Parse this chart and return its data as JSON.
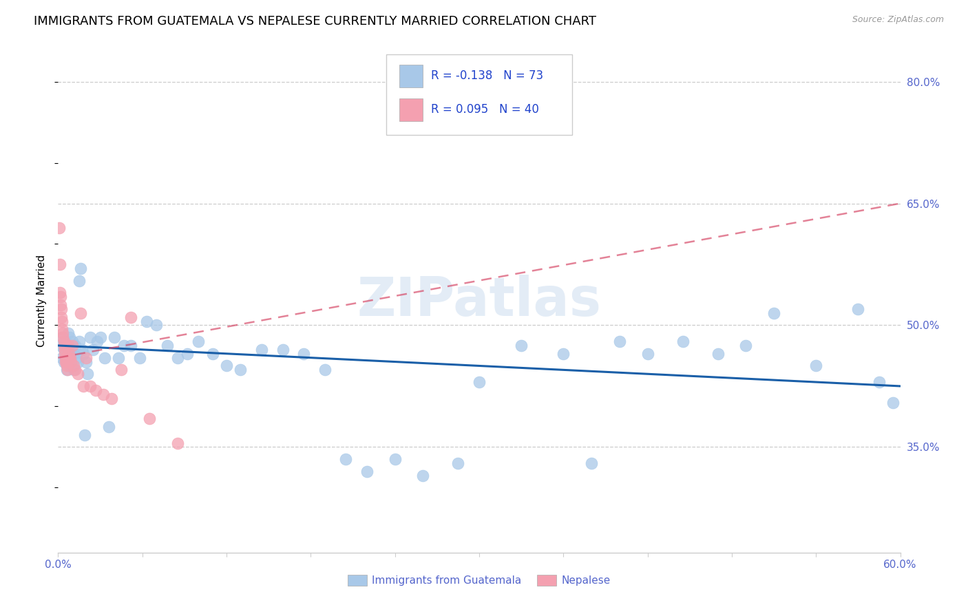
{
  "title": "IMMIGRANTS FROM GUATEMALA VS NEPALESE CURRENTLY MARRIED CORRELATION CHART",
  "source": "Source: ZipAtlas.com",
  "ylabel": "Currently Married",
  "right_yticks": [
    35.0,
    50.0,
    65.0,
    80.0
  ],
  "xlim_pct": [
    0.0,
    60.0
  ],
  "ylim_pct": [
    22.0,
    84.0
  ],
  "legend_r1": "-0.138",
  "legend_n1": "73",
  "legend_r2": "0.095",
  "legend_n2": "40",
  "legend_label1": "Immigrants from Guatemala",
  "legend_label2": "Nepalese",
  "blue_color": "#a8c8e8",
  "pink_color": "#f4a0b0",
  "blue_line_color": "#1a5fa8",
  "pink_line_color": "#d44060",
  "title_fontsize": 13,
  "tick_fontsize": 11,
  "tick_color": "#5566cc",
  "blue_trend_x0": 0.0,
  "blue_trend_y0": 47.5,
  "blue_trend_x1": 60.0,
  "blue_trend_y1": 42.5,
  "pink_trend_x0": 0.0,
  "pink_trend_y0": 46.0,
  "pink_trend_x1": 60.0,
  "pink_trend_y1": 65.0,
  "blue_x": [
    0.2,
    0.3,
    0.3,
    0.4,
    0.4,
    0.5,
    0.5,
    0.6,
    0.6,
    0.7,
    0.7,
    0.8,
    0.8,
    0.9,
    0.9,
    1.0,
    1.0,
    1.1,
    1.1,
    1.2,
    1.3,
    1.4,
    1.5,
    1.5,
    1.6,
    1.7,
    1.8,
    1.9,
    2.0,
    2.1,
    2.3,
    2.5,
    2.8,
    3.0,
    3.3,
    3.6,
    4.0,
    4.3,
    4.7,
    5.2,
    5.8,
    6.3,
    7.0,
    7.8,
    8.5,
    9.2,
    10.0,
    11.0,
    12.0,
    13.0,
    14.5,
    16.0,
    17.5,
    19.0,
    20.5,
    22.0,
    24.0,
    26.0,
    28.5,
    30.0,
    33.0,
    36.0,
    38.0,
    40.0,
    42.0,
    44.5,
    47.0,
    49.0,
    51.0,
    54.0,
    57.0,
    58.5,
    59.5
  ],
  "blue_y": [
    47.5,
    48.5,
    46.0,
    47.0,
    45.5,
    48.0,
    46.5,
    47.5,
    44.5,
    49.0,
    46.0,
    48.5,
    45.0,
    47.0,
    46.5,
    48.0,
    47.0,
    46.5,
    44.5,
    47.5,
    46.0,
    45.5,
    55.5,
    48.0,
    57.0,
    47.0,
    46.5,
    36.5,
    45.5,
    44.0,
    48.5,
    47.0,
    48.0,
    48.5,
    46.0,
    37.5,
    48.5,
    46.0,
    47.5,
    47.5,
    46.0,
    50.5,
    50.0,
    47.5,
    46.0,
    46.5,
    48.0,
    46.5,
    45.0,
    44.5,
    47.0,
    47.0,
    46.5,
    44.5,
    33.5,
    32.0,
    33.5,
    31.5,
    33.0,
    43.0,
    47.5,
    46.5,
    33.0,
    48.0,
    46.5,
    48.0,
    46.5,
    47.5,
    51.5,
    45.0,
    52.0,
    43.0,
    40.5
  ],
  "pink_x": [
    0.1,
    0.15,
    0.15,
    0.2,
    0.2,
    0.25,
    0.25,
    0.3,
    0.3,
    0.35,
    0.35,
    0.4,
    0.4,
    0.45,
    0.45,
    0.5,
    0.5,
    0.55,
    0.6,
    0.65,
    0.7,
    0.75,
    0.8,
    0.85,
    0.9,
    1.0,
    1.1,
    1.2,
    1.4,
    1.6,
    1.8,
    2.0,
    2.3,
    2.7,
    3.2,
    3.8,
    4.5,
    5.2,
    6.5,
    8.5
  ],
  "pink_y": [
    62.0,
    57.5,
    54.0,
    53.5,
    52.5,
    52.0,
    51.0,
    50.5,
    49.5,
    49.0,
    48.5,
    48.0,
    47.5,
    47.0,
    46.5,
    46.0,
    45.5,
    45.5,
    45.0,
    44.5,
    47.5,
    46.5,
    46.0,
    46.0,
    45.5,
    47.5,
    45.0,
    44.5,
    44.0,
    51.5,
    42.5,
    46.0,
    42.5,
    42.0,
    41.5,
    41.0,
    44.5,
    51.0,
    38.5,
    35.5
  ]
}
